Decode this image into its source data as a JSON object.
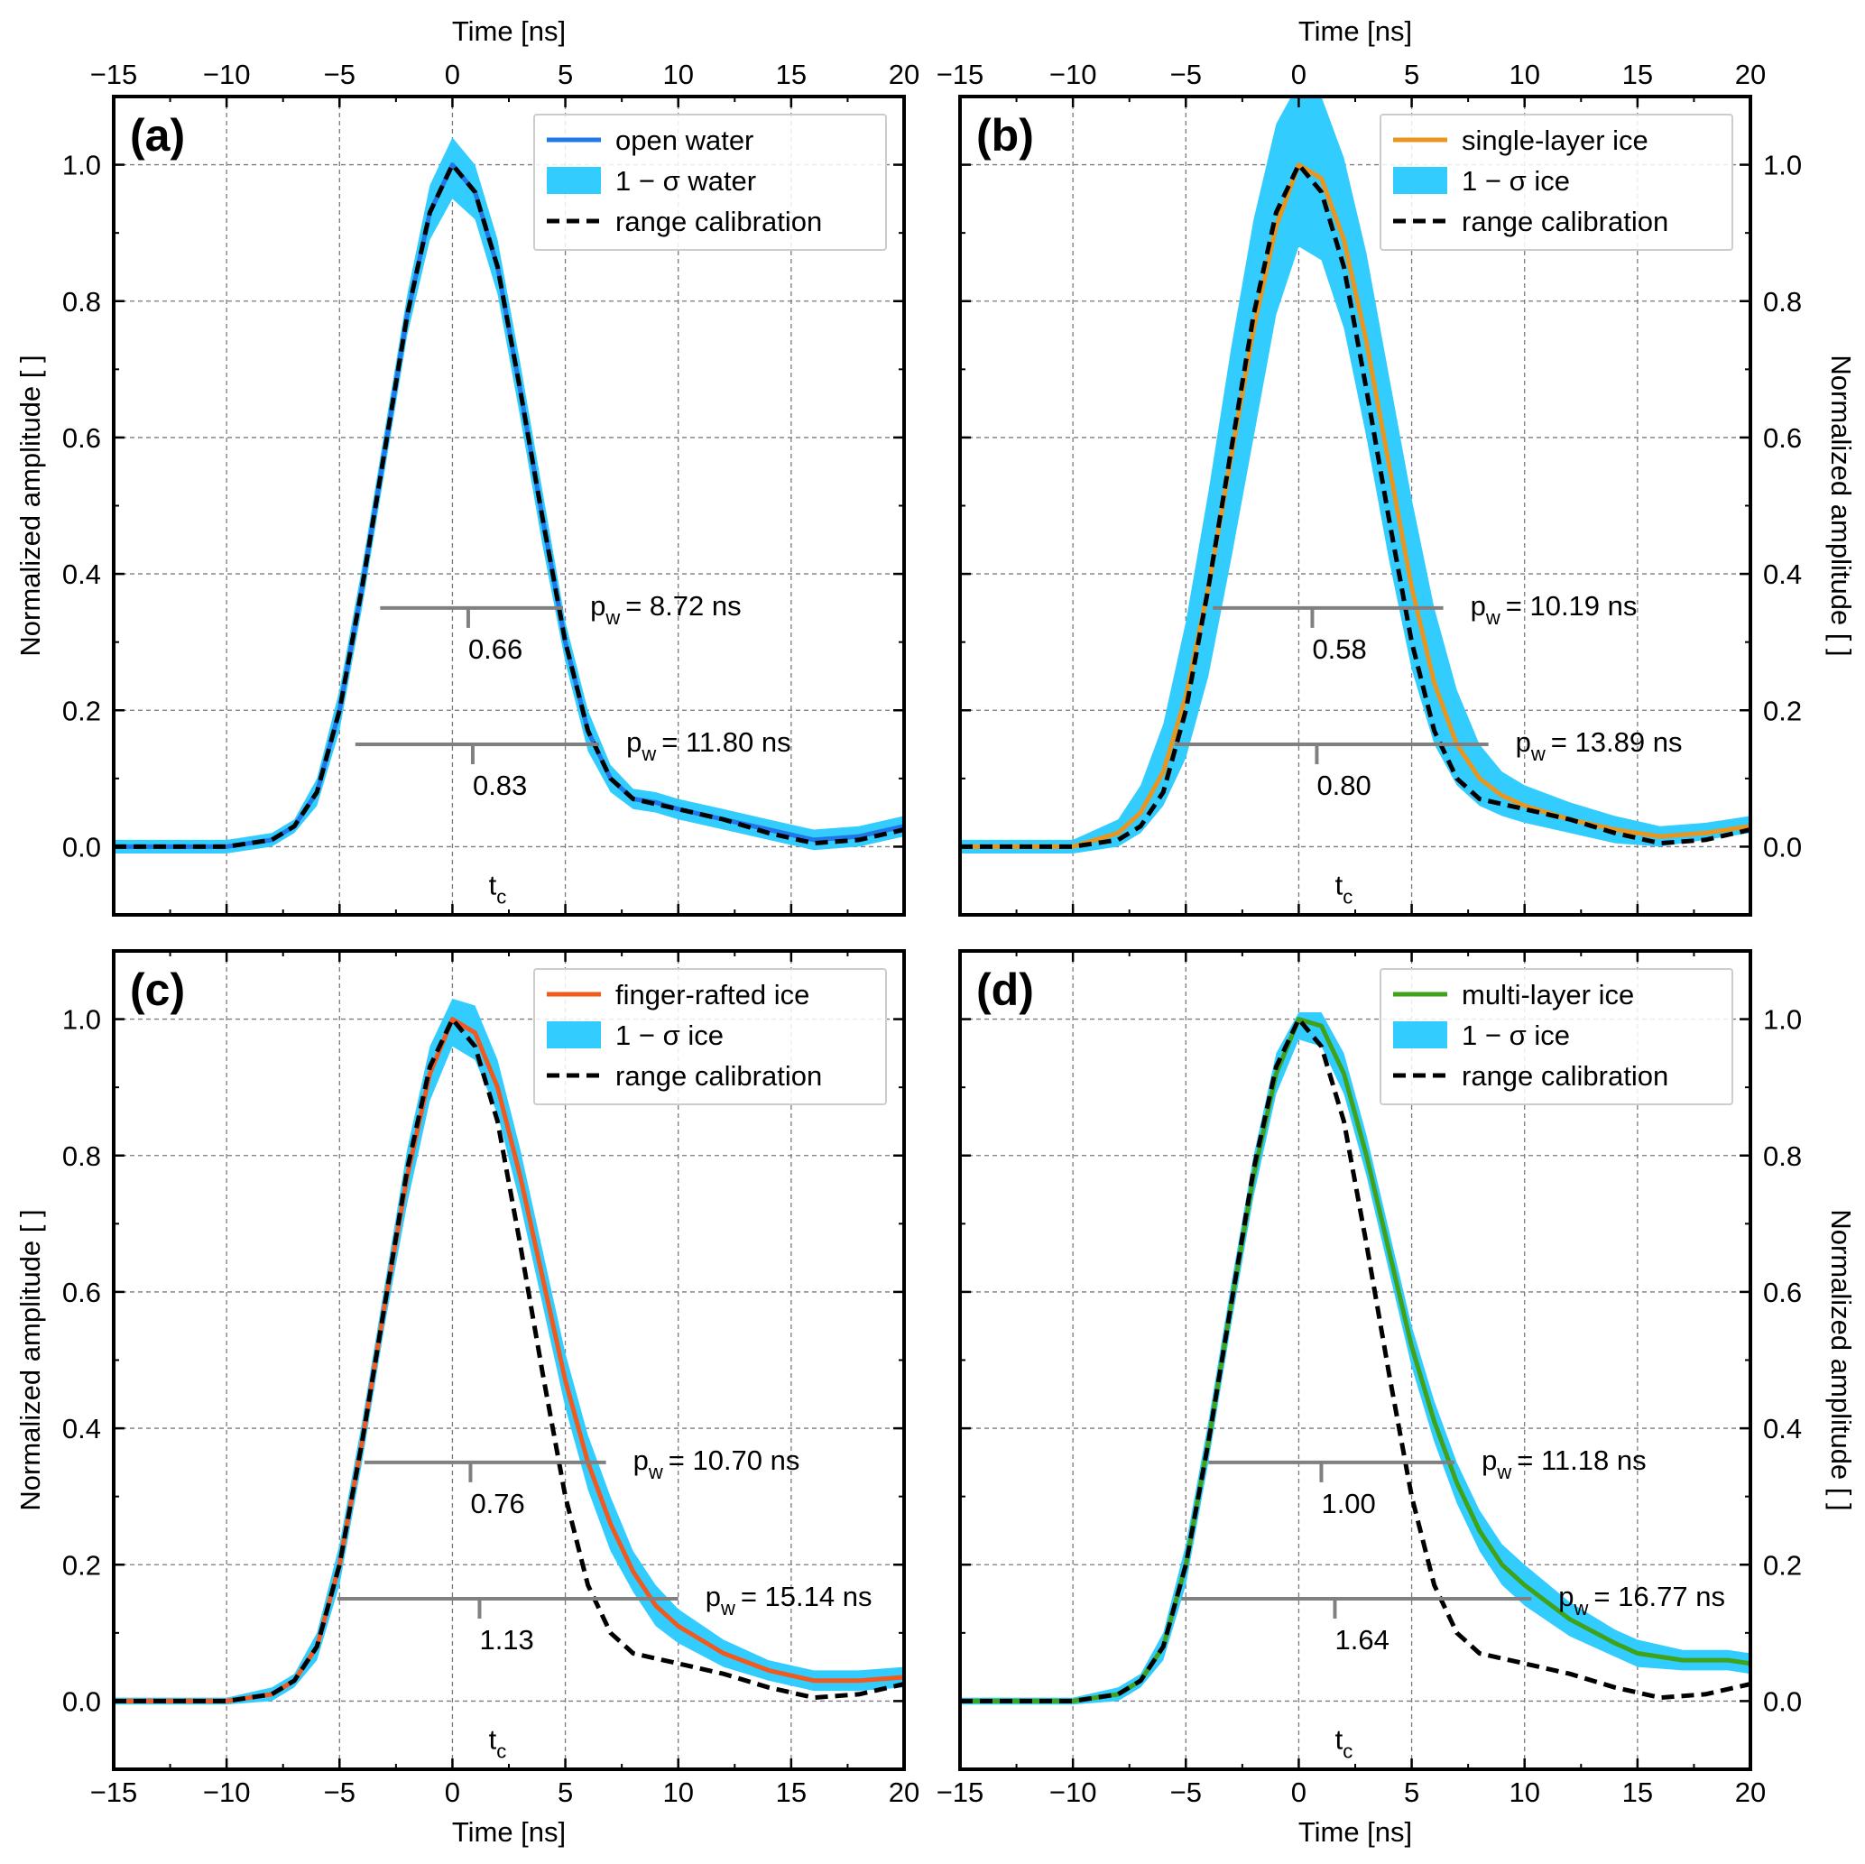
{
  "chart_data": [
    {
      "type": "line",
      "panel_label": "(a)",
      "xlabel_top": "Time [ns]",
      "xlabel_bottom": "",
      "ylabel_left": "Normalized amplitude [ ]",
      "ylabel_right": "",
      "xlim": [
        -15,
        20
      ],
      "ylim": [
        -0.1,
        1.1
      ],
      "xticks": [
        "−15",
        "−10",
        "−5",
        "0",
        "5",
        "10",
        "15",
        "20"
      ],
      "yticks": [
        "0.0",
        "0.2",
        "0.4",
        "0.6",
        "0.8",
        "1.0"
      ],
      "grid": true,
      "legend_position": "top-right",
      "legend": [
        {
          "label": "open water",
          "kind": "line"
        },
        {
          "label": "1 − σ water",
          "kind": "band"
        },
        {
          "label": "range calibration",
          "kind": "dashed"
        }
      ],
      "series": [
        {
          "name": "open water",
          "color": "#1f77e8",
          "width": 5,
          "x": [
            -15,
            -10,
            -8,
            -7,
            -6,
            -5,
            -4,
            -3,
            -2,
            -1,
            0,
            1,
            2,
            3,
            4,
            5,
            6,
            7,
            8,
            9,
            10,
            12,
            14,
            16,
            18,
            20
          ],
          "y": [
            0.0,
            0.0,
            0.01,
            0.03,
            0.08,
            0.2,
            0.38,
            0.58,
            0.78,
            0.93,
            1.0,
            0.96,
            0.85,
            0.67,
            0.48,
            0.3,
            0.17,
            0.1,
            0.07,
            0.065,
            0.055,
            0.04,
            0.025,
            0.01,
            0.015,
            0.03
          ]
        },
        {
          "name": "range calibration",
          "color": "#000000",
          "width": 5,
          "dashed": true,
          "x": [
            -15,
            -10,
            -8,
            -7,
            -6,
            -5,
            -4,
            -3,
            -2,
            -1,
            0,
            1,
            2,
            3,
            4,
            5,
            6,
            7,
            8,
            10,
            12,
            14,
            16,
            18,
            20
          ],
          "y": [
            0.0,
            0.0,
            0.01,
            0.03,
            0.08,
            0.2,
            0.38,
            0.58,
            0.78,
            0.93,
            1.0,
            0.96,
            0.85,
            0.67,
            0.48,
            0.3,
            0.17,
            0.1,
            0.07,
            0.055,
            0.04,
            0.02,
            0.005,
            0.01,
            0.025
          ]
        }
      ],
      "band": {
        "name": "1 − σ water",
        "color": "#33ccff",
        "x": [
          -15,
          -10,
          -8,
          -7,
          -6,
          -5,
          -4,
          -3,
          -2,
          -1,
          0,
          1,
          2,
          3,
          4,
          5,
          6,
          7,
          8,
          9,
          10,
          12,
          14,
          16,
          18,
          20
        ],
        "lower": [
          -0.01,
          -0.01,
          0.0,
          0.02,
          0.06,
          0.17,
          0.35,
          0.55,
          0.75,
          0.89,
          0.95,
          0.92,
          0.81,
          0.63,
          0.44,
          0.27,
          0.14,
          0.08,
          0.055,
          0.05,
          0.04,
          0.025,
          0.01,
          -0.005,
          0.0,
          0.015
        ],
        "upper": [
          0.01,
          0.01,
          0.02,
          0.04,
          0.1,
          0.23,
          0.41,
          0.61,
          0.81,
          0.97,
          1.04,
          1.0,
          0.89,
          0.71,
          0.52,
          0.33,
          0.2,
          0.12,
          0.085,
          0.08,
          0.07,
          0.055,
          0.04,
          0.025,
          0.03,
          0.045
        ]
      },
      "annotations": [
        {
          "y": 0.35,
          "x_start": -3.2,
          "x_end": 4.9,
          "marker_x": 0.7,
          "width_label": "p",
          "width_sub": "w",
          "width_value": "= 8.72 ns",
          "tick_label": "0.66"
        },
        {
          "y": 0.15,
          "x_start": -4.3,
          "x_end": 6.5,
          "marker_x": 0.9,
          "width_label": "p",
          "width_sub": "w",
          "width_value": "= 11.80 ns",
          "tick_label": "0.83"
        }
      ],
      "tc_label": "t",
      "tc_sub": "c"
    },
    {
      "type": "line",
      "panel_label": "(b)",
      "xlabel_top": "Time [ns]",
      "xlabel_bottom": "",
      "ylabel_left": "",
      "ylabel_right": "Normalized amplitude [ ]",
      "xlim": [
        -15,
        20
      ],
      "ylim": [
        -0.1,
        1.1
      ],
      "xticks": [
        "−15",
        "−10",
        "−5",
        "0",
        "5",
        "10",
        "15",
        "20"
      ],
      "yticks": [
        "0.0",
        "0.2",
        "0.4",
        "0.6",
        "0.8",
        "1.0"
      ],
      "grid": true,
      "legend_position": "top-right",
      "legend": [
        {
          "label": "single-layer ice",
          "kind": "line"
        },
        {
          "label": "1 − σ ice",
          "kind": "band"
        },
        {
          "label": "range calibration",
          "kind": "dashed"
        }
      ],
      "series": [
        {
          "name": "single-layer ice",
          "color": "#e8961f",
          "width": 5,
          "x": [
            -15,
            -10,
            -8,
            -7,
            -6,
            -5,
            -4,
            -3,
            -2,
            -1,
            0,
            1,
            2,
            3,
            4,
            5,
            6,
            7,
            8,
            9,
            10,
            12,
            14,
            16,
            18,
            20
          ],
          "y": [
            0.0,
            0.0,
            0.02,
            0.05,
            0.11,
            0.22,
            0.38,
            0.57,
            0.76,
            0.91,
            1.0,
            0.98,
            0.89,
            0.74,
            0.56,
            0.38,
            0.24,
            0.15,
            0.1,
            0.075,
            0.06,
            0.04,
            0.025,
            0.015,
            0.02,
            0.03
          ]
        },
        {
          "name": "range calibration",
          "color": "#000000",
          "width": 5,
          "dashed": true,
          "x": [
            -15,
            -10,
            -8,
            -7,
            -6,
            -5,
            -4,
            -3,
            -2,
            -1,
            0,
            1,
            2,
            3,
            4,
            5,
            6,
            7,
            8,
            10,
            12,
            14,
            16,
            18,
            20
          ],
          "y": [
            0.0,
            0.0,
            0.01,
            0.03,
            0.08,
            0.2,
            0.38,
            0.58,
            0.78,
            0.93,
            1.0,
            0.96,
            0.85,
            0.67,
            0.48,
            0.3,
            0.17,
            0.1,
            0.07,
            0.055,
            0.04,
            0.02,
            0.005,
            0.01,
            0.025
          ]
        }
      ],
      "band": {
        "name": "1 − σ ice",
        "color": "#33ccff",
        "x": [
          -15,
          -10,
          -8,
          -7,
          -6,
          -5,
          -4,
          -3,
          -2,
          -1,
          0,
          1,
          2,
          3,
          4,
          5,
          6,
          7,
          8,
          9,
          10,
          12,
          14,
          16,
          18,
          20
        ],
        "lower": [
          -0.01,
          -0.01,
          0.0,
          0.02,
          0.06,
          0.13,
          0.25,
          0.42,
          0.6,
          0.78,
          0.88,
          0.86,
          0.76,
          0.6,
          0.42,
          0.26,
          0.15,
          0.09,
          0.06,
          0.045,
          0.035,
          0.02,
          0.005,
          0.0,
          0.01,
          0.02
        ],
        "upper": [
          0.01,
          0.01,
          0.04,
          0.09,
          0.18,
          0.33,
          0.52,
          0.73,
          0.92,
          1.06,
          1.12,
          1.1,
          1.01,
          0.87,
          0.69,
          0.51,
          0.35,
          0.23,
          0.15,
          0.11,
          0.09,
          0.065,
          0.045,
          0.03,
          0.035,
          0.045
        ]
      },
      "annotations": [
        {
          "y": 0.35,
          "x_start": -3.8,
          "x_end": 6.4,
          "marker_x": 0.6,
          "width_label": "p",
          "width_sub": "w",
          "width_value": "= 10.19 ns",
          "tick_label": "0.58"
        },
        {
          "y": 0.15,
          "x_start": -5.5,
          "x_end": 8.4,
          "marker_x": 0.8,
          "width_label": "p",
          "width_sub": "w",
          "width_value": "= 13.89 ns",
          "tick_label": "0.80"
        }
      ],
      "tc_label": "t",
      "tc_sub": "c"
    },
    {
      "type": "line",
      "panel_label": "(c)",
      "xlabel_top": "",
      "xlabel_bottom": "Time [ns]",
      "ylabel_left": "Normalized amplitude [ ]",
      "ylabel_right": "",
      "xlim": [
        -15,
        20
      ],
      "ylim": [
        -0.1,
        1.1
      ],
      "xticks": [
        "−15",
        "−10",
        "−5",
        "0",
        "5",
        "10",
        "15",
        "20"
      ],
      "yticks": [
        "0.0",
        "0.2",
        "0.4",
        "0.6",
        "0.8",
        "1.0"
      ],
      "grid": true,
      "legend_position": "top-right",
      "legend": [
        {
          "label": "finger-rafted ice",
          "kind": "line"
        },
        {
          "label": "1 − σ ice",
          "kind": "band"
        },
        {
          "label": "range calibration",
          "kind": "dashed"
        }
      ],
      "series": [
        {
          "name": "finger-rafted ice",
          "color": "#f05a1e",
          "width": 5,
          "x": [
            -15,
            -10,
            -8,
            -7,
            -6,
            -5,
            -4,
            -3,
            -2,
            -1,
            0,
            1,
            2,
            3,
            4,
            5,
            6,
            7,
            8,
            9,
            10,
            12,
            14,
            16,
            18,
            20
          ],
          "y": [
            0.0,
            0.0,
            0.01,
            0.03,
            0.08,
            0.2,
            0.38,
            0.58,
            0.77,
            0.92,
            1.0,
            0.98,
            0.9,
            0.77,
            0.62,
            0.47,
            0.35,
            0.26,
            0.19,
            0.14,
            0.11,
            0.07,
            0.045,
            0.03,
            0.03,
            0.035
          ]
        },
        {
          "name": "range calibration",
          "color": "#000000",
          "width": 5,
          "dashed": true,
          "x": [
            -15,
            -10,
            -8,
            -7,
            -6,
            -5,
            -4,
            -3,
            -2,
            -1,
            0,
            1,
            2,
            3,
            4,
            5,
            6,
            7,
            8,
            10,
            12,
            14,
            16,
            18,
            20
          ],
          "y": [
            0.0,
            0.0,
            0.01,
            0.03,
            0.08,
            0.2,
            0.38,
            0.58,
            0.78,
            0.93,
            1.0,
            0.96,
            0.85,
            0.67,
            0.48,
            0.3,
            0.17,
            0.1,
            0.07,
            0.055,
            0.04,
            0.02,
            0.005,
            0.01,
            0.025
          ]
        }
      ],
      "band": {
        "name": "1 − σ ice",
        "color": "#33ccff",
        "x": [
          -15,
          -10,
          -8,
          -7,
          -6,
          -5,
          -4,
          -3,
          -2,
          -1,
          0,
          1,
          2,
          3,
          4,
          5,
          6,
          7,
          8,
          9,
          10,
          12,
          14,
          16,
          18,
          20
        ],
        "lower": [
          -0.005,
          -0.005,
          0.0,
          0.02,
          0.06,
          0.17,
          0.35,
          0.55,
          0.73,
          0.88,
          0.96,
          0.94,
          0.86,
          0.73,
          0.58,
          0.43,
          0.31,
          0.22,
          0.16,
          0.11,
          0.085,
          0.05,
          0.03,
          0.015,
          0.015,
          0.02
        ],
        "upper": [
          0.005,
          0.005,
          0.02,
          0.04,
          0.1,
          0.23,
          0.41,
          0.61,
          0.81,
          0.96,
          1.03,
          1.02,
          0.94,
          0.81,
          0.66,
          0.51,
          0.39,
          0.3,
          0.22,
          0.17,
          0.135,
          0.09,
          0.06,
          0.045,
          0.045,
          0.05
        ]
      },
      "annotations": [
        {
          "y": 0.35,
          "x_start": -3.9,
          "x_end": 6.8,
          "marker_x": 0.8,
          "width_label": "p",
          "width_sub": "w",
          "width_value": "= 10.70 ns",
          "tick_label": "0.76"
        },
        {
          "y": 0.15,
          "x_start": -5.1,
          "x_end": 10.0,
          "marker_x": 1.2,
          "width_label": "p",
          "width_sub": "w",
          "width_value": "= 15.14 ns",
          "tick_label": "1.13"
        }
      ],
      "tc_label": "t",
      "tc_sub": "c"
    },
    {
      "type": "line",
      "panel_label": "(d)",
      "xlabel_top": "",
      "xlabel_bottom": "Time [ns]",
      "ylabel_left": "",
      "ylabel_right": "Normalized amplitude [ ]",
      "xlim": [
        -15,
        20
      ],
      "ylim": [
        -0.1,
        1.1
      ],
      "xticks": [
        "−15",
        "−10",
        "−5",
        "0",
        "5",
        "10",
        "15",
        "20"
      ],
      "yticks": [
        "0.0",
        "0.2",
        "0.4",
        "0.6",
        "0.8",
        "1.0"
      ],
      "grid": true,
      "legend_position": "top-right",
      "legend": [
        {
          "label": "multi-layer ice",
          "kind": "line"
        },
        {
          "label": "1 − σ ice",
          "kind": "band"
        },
        {
          "label": "range calibration",
          "kind": "dashed"
        }
      ],
      "series": [
        {
          "name": "multi-layer ice",
          "color": "#3fa219",
          "width": 5,
          "x": [
            -15,
            -10,
            -8,
            -7,
            -6,
            -5,
            -4,
            -3,
            -2,
            -1,
            0,
            1,
            2,
            3,
            4,
            5,
            6,
            7,
            8,
            9,
            10,
            12,
            14,
            15,
            17,
            19,
            20
          ],
          "y": [
            0.0,
            0.0,
            0.01,
            0.03,
            0.08,
            0.2,
            0.38,
            0.58,
            0.77,
            0.92,
            1.0,
            0.99,
            0.92,
            0.8,
            0.66,
            0.52,
            0.41,
            0.32,
            0.25,
            0.2,
            0.17,
            0.12,
            0.085,
            0.07,
            0.06,
            0.06,
            0.055
          ]
        },
        {
          "name": "range calibration",
          "color": "#000000",
          "width": 5,
          "dashed": true,
          "x": [
            -15,
            -10,
            -8,
            -7,
            -6,
            -5,
            -4,
            -3,
            -2,
            -1,
            0,
            1,
            2,
            3,
            4,
            5,
            6,
            7,
            8,
            10,
            12,
            14,
            16,
            18,
            20
          ],
          "y": [
            0.0,
            0.0,
            0.01,
            0.03,
            0.08,
            0.2,
            0.38,
            0.58,
            0.78,
            0.93,
            1.0,
            0.96,
            0.85,
            0.67,
            0.48,
            0.3,
            0.17,
            0.1,
            0.07,
            0.055,
            0.04,
            0.02,
            0.005,
            0.01,
            0.025
          ]
        }
      ],
      "band": {
        "name": "1 − σ ice",
        "color": "#33ccff",
        "x": [
          -15,
          -10,
          -8,
          -7,
          -6,
          -5,
          -4,
          -3,
          -2,
          -1,
          0,
          1,
          2,
          3,
          4,
          5,
          6,
          7,
          8,
          9,
          10,
          12,
          14,
          15,
          17,
          19,
          20
        ],
        "lower": [
          -0.005,
          -0.005,
          0.0,
          0.02,
          0.06,
          0.17,
          0.35,
          0.55,
          0.74,
          0.89,
          0.97,
          0.96,
          0.89,
          0.77,
          0.63,
          0.49,
          0.38,
          0.29,
          0.22,
          0.17,
          0.14,
          0.095,
          0.065,
          0.05,
          0.045,
          0.045,
          0.04
        ],
        "upper": [
          0.005,
          0.005,
          0.02,
          0.04,
          0.1,
          0.23,
          0.41,
          0.61,
          0.8,
          0.95,
          1.01,
          1.01,
          0.95,
          0.83,
          0.69,
          0.55,
          0.44,
          0.35,
          0.28,
          0.23,
          0.2,
          0.145,
          0.105,
          0.09,
          0.075,
          0.075,
          0.07
        ]
      },
      "annotations": [
        {
          "y": 0.35,
          "x_start": -4.0,
          "x_end": 6.9,
          "marker_x": 1.0,
          "width_label": "p",
          "width_sub": "w",
          "width_value": "= 11.18 ns",
          "tick_label": "1.00"
        },
        {
          "y": 0.15,
          "x_start": -5.2,
          "x_end": 10.3,
          "marker_x": 1.6,
          "width_label": "p",
          "width_sub": "w",
          "width_value": "= 16.77 ns",
          "tick_label": "1.64"
        }
      ],
      "tc_label": "t",
      "tc_sub": "c"
    }
  ]
}
